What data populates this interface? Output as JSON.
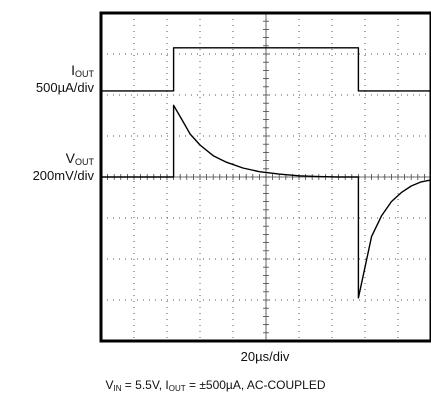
{
  "chart_data": {
    "type": "line",
    "title": "",
    "grid": true,
    "x_divisions": 10,
    "y_divisions": 8,
    "time_scale": "20µs/div",
    "caption": {
      "vin_sym": "V",
      "vin_sub": "IN",
      "vin_val": " = 5.5V, ",
      "iout_sym": "I",
      "iout_sub": "OUT",
      "iout_val": " = ±500µA, AC-COUPLED"
    },
    "series": [
      {
        "name_sym": "I",
        "name_sub": "OUT",
        "scale": "500µA/div",
        "color": "#000000",
        "x_div": [
          0,
          2.2,
          2.2,
          7.8,
          7.8,
          10
        ],
        "y_div": [
          6.1,
          6.1,
          7.15,
          7.15,
          6.1,
          6.1
        ]
      },
      {
        "name_sym": "V",
        "name_sub": "OUT",
        "scale": "200mV/div",
        "color": "#000000",
        "x_div": [
          0,
          2.2,
          2.2,
          2.45,
          2.7,
          3.0,
          3.4,
          3.8,
          4.3,
          4.8,
          5.4,
          6.0,
          6.6,
          7.2,
          7.8,
          7.8,
          8.0,
          8.2,
          8.5,
          8.8,
          9.1,
          9.4,
          9.7,
          10
        ],
        "y_div": [
          4.0,
          4.0,
          5.75,
          5.4,
          5.05,
          4.78,
          4.52,
          4.36,
          4.22,
          4.13,
          4.07,
          4.03,
          4.01,
          4.0,
          4.0,
          1.05,
          1.8,
          2.55,
          3.05,
          3.4,
          3.62,
          3.78,
          3.88,
          3.93
        ]
      }
    ]
  }
}
